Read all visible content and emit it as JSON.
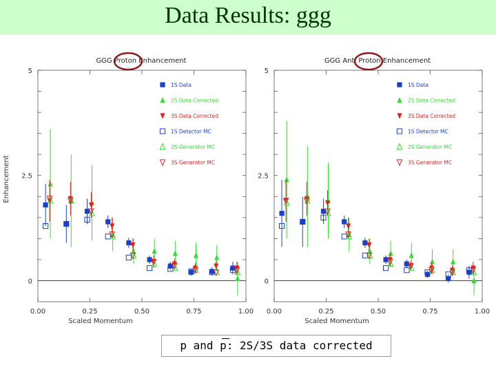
{
  "title": "Data Results: ggg",
  "caption": "p and p: 2S/3S data corrected",
  "colors": {
    "title_background": "#ccffcc",
    "title_text": "#003300",
    "series_1S_data": "#1a3fcc",
    "series_2S_data": "#33dd33",
    "series_3S_data": "#dd2222",
    "highlight_circle": "#8b1a1a"
  },
  "chart_data": [
    {
      "type": "scatter",
      "title": "GGG Proton Enhancement",
      "xlabel": "Scaled Momentum",
      "ylabel": "Enhancement",
      "xlim": [
        0,
        1
      ],
      "ylim": [
        -0.5,
        5
      ],
      "xticks": [
        "0.00",
        "0.25",
        "0.50",
        "0.75",
        "1.00"
      ],
      "yticks": [
        "0",
        "2.5",
        "5"
      ],
      "grid": false,
      "legend_position": "top-right",
      "series": [
        {
          "name": "1S Data",
          "marker": "square-filled",
          "color": "#1a3fcc",
          "x": [
            0.05,
            0.15,
            0.25,
            0.35,
            0.45,
            0.55,
            0.65,
            0.75,
            0.85,
            0.95
          ],
          "y": [
            1.8,
            1.35,
            1.65,
            1.4,
            0.9,
            0.5,
            0.35,
            0.2,
            0.22,
            0.3
          ],
          "err": [
            0.5,
            0.45,
            0.3,
            0.15,
            0.12,
            0.1,
            0.1,
            0.08,
            0.1,
            0.15
          ]
        },
        {
          "name": "2S Data Corrected",
          "marker": "triangle-up-filled",
          "color": "#33dd33",
          "x": [
            0.05,
            0.15,
            0.25,
            0.35,
            0.45,
            0.55,
            0.65,
            0.75,
            0.85,
            0.95
          ],
          "y": [
            2.3,
            1.9,
            1.85,
            1.1,
            0.7,
            0.7,
            0.65,
            0.6,
            0.55,
            0.05
          ],
          "err": [
            1.3,
            1.1,
            0.9,
            0.4,
            0.3,
            0.3,
            0.3,
            0.3,
            0.3,
            0.4
          ]
        },
        {
          "name": "3S Data Corrected",
          "marker": "triangle-down-filled",
          "color": "#dd2222",
          "x": [
            0.05,
            0.15,
            0.25,
            0.35,
            0.45,
            0.55,
            0.65,
            0.75,
            0.85,
            0.95
          ],
          "y": [
            1.9,
            1.95,
            1.8,
            1.3,
            0.85,
            0.45,
            0.4,
            0.3,
            0.35,
            0.3
          ],
          "err": [
            0.5,
            0.4,
            0.3,
            0.2,
            0.15,
            0.15,
            0.12,
            0.12,
            0.12,
            0.15
          ]
        },
        {
          "name": "1S Detector MC",
          "marker": "square-open",
          "color": "#1a3fcc",
          "x": [
            0.05,
            0.15,
            0.25,
            0.35,
            0.45,
            0.55,
            0.65,
            0.75,
            0.85,
            0.95
          ],
          "y": [
            1.3,
            1.35,
            1.45,
            1.05,
            0.55,
            0.3,
            0.28,
            0.22,
            0.2,
            0.25
          ],
          "err": [
            0,
            0,
            0,
            0,
            0,
            0,
            0,
            0,
            0,
            0
          ]
        },
        {
          "name": "2S Generator MC",
          "marker": "triangle-up-open",
          "color": "#33dd33",
          "x": [
            0.05,
            0.15,
            0.25,
            0.35,
            0.45,
            0.55,
            0.65,
            0.75,
            0.85,
            0.95
          ],
          "y": [
            1.9,
            1.9,
            1.6,
            1.05,
            0.6,
            0.4,
            0.3,
            0.25,
            0.2,
            0.2
          ],
          "err": [
            0,
            0,
            0,
            0,
            0,
            0,
            0,
            0,
            0,
            0
          ]
        },
        {
          "name": "3S Generator MC",
          "marker": "triangle-down-open",
          "color": "#dd2222",
          "x": [
            0.05,
            0.15,
            0.25,
            0.35,
            0.45,
            0.55,
            0.65,
            0.75,
            0.85,
            0.95
          ],
          "y": [
            1.95,
            1.9,
            1.65,
            1.1,
            0.6,
            0.45,
            0.35,
            0.25,
            0.2,
            0.25
          ],
          "err": [
            0,
            0,
            0,
            0,
            0,
            0,
            0,
            0,
            0,
            0
          ]
        }
      ]
    },
    {
      "type": "scatter",
      "title": "GGG Anti Proton Enhancement",
      "xlabel": "Scaled Momentum",
      "ylabel": "",
      "xlim": [
        0,
        1
      ],
      "ylim": [
        -0.5,
        5
      ],
      "xticks": [
        "0.00",
        "0.25",
        "0.50",
        "0.75",
        "1.00"
      ],
      "yticks": [
        "0",
        "2.5",
        "5"
      ],
      "grid": false,
      "legend_position": "top-right",
      "series": [
        {
          "name": "1S Data",
          "marker": "square-filled",
          "color": "#1a3fcc",
          "x": [
            0.05,
            0.15,
            0.25,
            0.35,
            0.45,
            0.55,
            0.65,
            0.75,
            0.85,
            0.95
          ],
          "y": [
            1.6,
            1.4,
            1.65,
            1.4,
            0.9,
            0.5,
            0.4,
            0.15,
            0.05,
            0.2
          ],
          "err": [
            0.8,
            0.6,
            0.3,
            0.15,
            0.12,
            0.1,
            0.1,
            0.08,
            0.1,
            0.15
          ]
        },
        {
          "name": "2S Data Corrected",
          "marker": "triangle-up-filled",
          "color": "#33dd33",
          "x": [
            0.05,
            0.15,
            0.25,
            0.35,
            0.45,
            0.55,
            0.65,
            0.75,
            0.85,
            0.95
          ],
          "y": [
            2.4,
            2.0,
            1.9,
            1.1,
            0.7,
            0.65,
            0.6,
            0.45,
            0.45,
            0.0
          ],
          "err": [
            1.4,
            1.2,
            0.9,
            0.4,
            0.3,
            0.3,
            0.3,
            0.3,
            0.3,
            0.35
          ]
        },
        {
          "name": "3S Data Corrected",
          "marker": "triangle-down-filled",
          "color": "#dd2222",
          "x": [
            0.05,
            0.15,
            0.25,
            0.35,
            0.45,
            0.55,
            0.65,
            0.75,
            0.85,
            0.95
          ],
          "y": [
            1.9,
            1.95,
            1.85,
            1.3,
            0.85,
            0.5,
            0.35,
            0.3,
            0.25,
            0.3
          ],
          "err": [
            0.5,
            0.4,
            0.3,
            0.2,
            0.15,
            0.15,
            0.12,
            0.12,
            0.12,
            0.15
          ]
        },
        {
          "name": "1S Detector MC",
          "marker": "square-open",
          "color": "#1a3fcc",
          "x": [
            0.05,
            0.15,
            0.25,
            0.35,
            0.45,
            0.55,
            0.65,
            0.75,
            0.85,
            0.95
          ],
          "y": [
            1.3,
            1.4,
            1.5,
            1.05,
            0.6,
            0.3,
            0.25,
            0.2,
            0.15,
            0.25
          ],
          "err": [
            0,
            0,
            0,
            0,
            0,
            0,
            0,
            0,
            0,
            0
          ]
        },
        {
          "name": "2S Generator MC",
          "marker": "triangle-up-open",
          "color": "#33dd33",
          "x": [
            0.05,
            0.15,
            0.25,
            0.35,
            0.45,
            0.55,
            0.65,
            0.75,
            0.85,
            0.95
          ],
          "y": [
            1.85,
            1.9,
            1.6,
            1.05,
            0.6,
            0.4,
            0.3,
            0.25,
            0.2,
            0.2
          ],
          "err": [
            0,
            0,
            0,
            0,
            0,
            0,
            0,
            0,
            0,
            0
          ]
        },
        {
          "name": "3S Generator MC",
          "marker": "triangle-down-open",
          "color": "#dd2222",
          "x": [
            0.05,
            0.15,
            0.25,
            0.35,
            0.45,
            0.55,
            0.65,
            0.75,
            0.85,
            0.95
          ],
          "y": [
            1.9,
            1.9,
            1.65,
            1.1,
            0.6,
            0.45,
            0.35,
            0.25,
            0.2,
            0.25
          ],
          "err": [
            0,
            0,
            0,
            0,
            0,
            0,
            0,
            0,
            0,
            0
          ]
        }
      ]
    }
  ]
}
